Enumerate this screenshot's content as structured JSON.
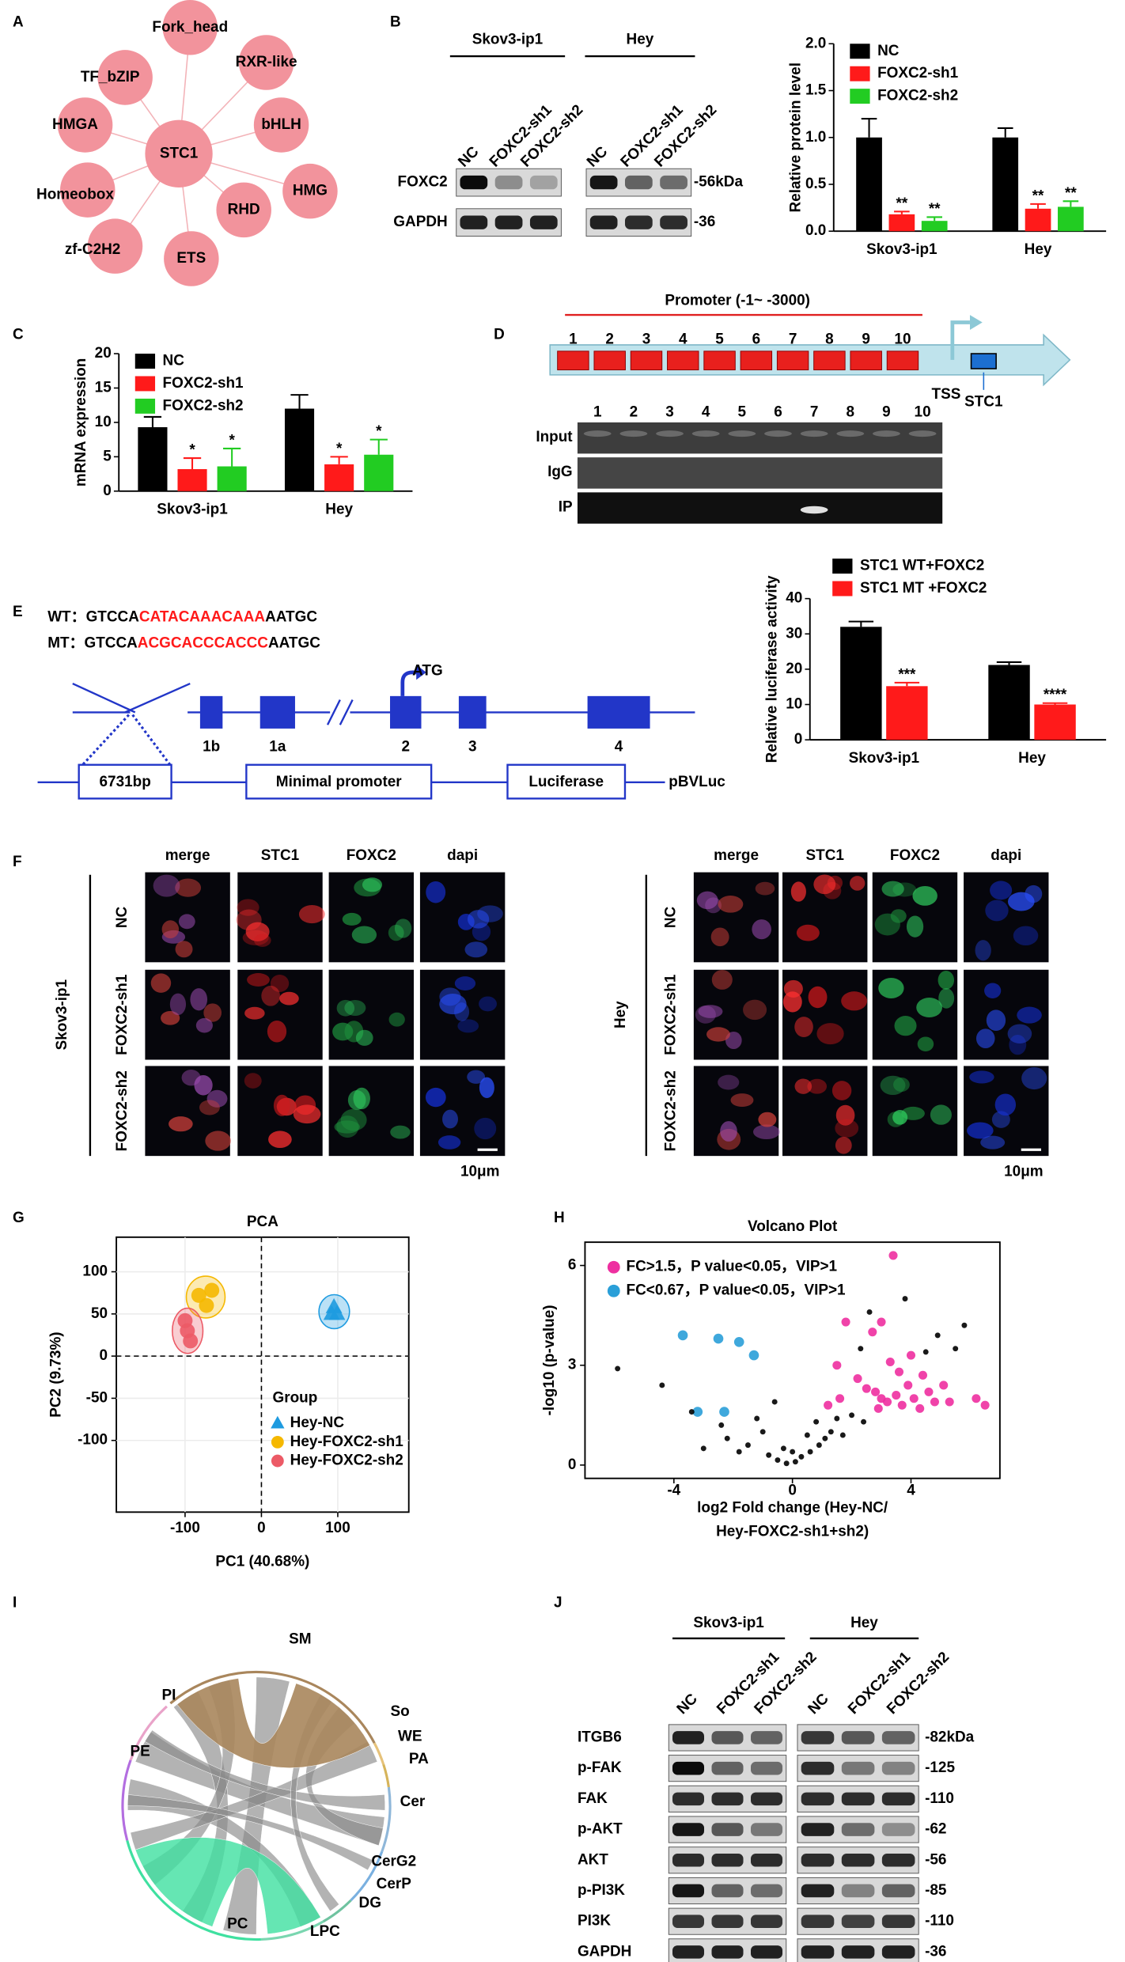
{
  "panel_labels": [
    "A",
    "B",
    "C",
    "D",
    "E",
    "F",
    "G",
    "H",
    "I",
    "J"
  ],
  "panel_a": {
    "center": "STC1",
    "nodes": [
      "Fork_head",
      "RXR-like",
      "bHLH",
      "HMG",
      "RHD",
      "ETS",
      "zf-C2H2",
      "Homeobox",
      "HMGA",
      "TF_bZIP"
    ]
  },
  "panel_b_blot": {
    "groups": [
      "Skov3-ip1",
      "Hey"
    ],
    "lanes": [
      "NC",
      "FOXC2-sh1",
      "FOXC2-sh2"
    ],
    "proteins": [
      "FOXC2",
      "GAPDH"
    ],
    "sizes": [
      "-56kDa",
      "-36"
    ]
  },
  "panel_d": {
    "promoter": "Promoter (-1~ -3000)",
    "sites": [
      "1",
      "2",
      "3",
      "4",
      "5",
      "6",
      "7",
      "8",
      "9",
      "10"
    ],
    "tss": "TSS",
    "gene": "STC1",
    "lanes": [
      "1",
      "2",
      "3",
      "4",
      "5",
      "6",
      "7",
      "8",
      "9",
      "10"
    ],
    "rows": [
      "Input",
      "IgG",
      "IP"
    ]
  },
  "panel_e": {
    "wt": {
      "label": "WT：",
      "seq": [
        "GTCCA",
        "CATACAAACAAA",
        "AATGC"
      ]
    },
    "mt": {
      "label": "MT：",
      "seq": [
        "GTCCA",
        "ACGCACCCACCC",
        "AATGC"
      ]
    },
    "atg": "ATG",
    "exons": [
      "1b",
      "1a",
      "2",
      "3",
      "4"
    ],
    "construct": [
      "6731bp",
      "Minimal promoter",
      "Luciferase"
    ],
    "vector": "pBVLuc"
  },
  "panel_f": {
    "groups": [
      "Skov3-ip1",
      "Hey"
    ],
    "columns": [
      "merge",
      "STC1",
      "FOXC2",
      "dapi"
    ],
    "rows": [
      "NC",
      "FOXC2-sh1",
      "FOXC2-sh2"
    ],
    "scale_bar": "10μm"
  },
  "panel_i": {
    "labels": [
      "SM",
      "PI",
      "PE",
      "So",
      "WE",
      "PA",
      "Cer",
      "CerG2",
      "CerP",
      "DG",
      "LPC",
      "PC"
    ]
  },
  "panel_j": {
    "groups": [
      "Skov3-ip1",
      "Hey"
    ],
    "lanes": [
      "NC",
      "FOXC2-sh1",
      "FOXC2-sh2"
    ],
    "proteins": [
      "ITGB6",
      "p-FAK",
      "FAK",
      "p-AKT",
      "AKT",
      "p-PI3K",
      "PI3K",
      "GAPDH"
    ],
    "sizes": [
      "-82kDa",
      "-125",
      "-110",
      "-62",
      "-56",
      "-85",
      "-110",
      "-36"
    ]
  },
  "chart_data": [
    {
      "type": "bar",
      "ylabel": "Relative protein level",
      "legend": "upper left",
      "categories": [
        "Skov3-ip1",
        "Hey"
      ],
      "series": [
        {
          "name": "NC",
          "color": "#000000",
          "values": [
            1.0,
            1.0
          ],
          "errors": [
            0.2,
            0.1
          ]
        },
        {
          "name": "FOXC2-sh1",
          "color": "#ff1a1a",
          "values": [
            0.18,
            0.24
          ],
          "errors": [
            0.03,
            0.05
          ],
          "significance": [
            "**",
            "**"
          ]
        },
        {
          "name": "FOXC2-sh2",
          "color": "#22cc22",
          "values": [
            0.11,
            0.26
          ],
          "errors": [
            0.04,
            0.06
          ],
          "significance": [
            "**",
            "**"
          ]
        }
      ],
      "ylim": [
        0,
        2
      ],
      "yticks": [
        {
          "value": 0,
          "label": "0.0"
        },
        {
          "value": 0.5,
          "label": "0.5"
        },
        {
          "value": 1,
          "label": "1.0"
        },
        {
          "value": 1.5,
          "label": "1.5"
        },
        {
          "value": 2,
          "label": "2.0"
        }
      ]
    },
    {
      "type": "bar",
      "ylabel": "mRNA expression",
      "legend": "upper left",
      "categories": [
        "Skov3-ip1",
        "Hey"
      ],
      "series": [
        {
          "name": "NC",
          "color": "#000000",
          "values": [
            9.3,
            12.0
          ],
          "errors": [
            1.5,
            2.0
          ]
        },
        {
          "name": "FOXC2-sh1",
          "color": "#ff1a1a",
          "values": [
            3.2,
            3.9
          ],
          "errors": [
            1.6,
            1.1
          ],
          "significance": [
            "*",
            "*"
          ]
        },
        {
          "name": "FOXC2-sh2",
          "color": "#22cc22",
          "values": [
            3.6,
            5.3
          ],
          "errors": [
            2.6,
            2.2
          ],
          "significance": [
            "*",
            "*"
          ]
        }
      ],
      "ylim": [
        0,
        20
      ],
      "yticks": [
        0,
        5,
        10,
        15,
        20
      ]
    },
    {
      "type": "bar",
      "ylabel": "Relative luciferase activity",
      "legend": "top",
      "categories": [
        "Skov3-ip1",
        "Hey"
      ],
      "series": [
        {
          "name": "STC1 WT+FOXC2",
          "color": "#000000",
          "values": [
            32,
            21.2
          ],
          "errors": [
            1.5,
            0.8
          ]
        },
        {
          "name": "STC1 MT +FOXC2",
          "color": "#ff1a1a",
          "values": [
            15.2,
            10
          ],
          "errors": [
            1.0,
            0.4
          ],
          "significance": [
            "***",
            "****"
          ]
        }
      ],
      "ylim": [
        0,
        40
      ],
      "yticks": [
        0,
        10,
        20,
        30,
        40
      ]
    },
    {
      "type": "scatter",
      "title": "PCA",
      "xlabel": "PC1 (40.68%)",
      "ylabel": "PC2 (9.73%)",
      "legend_title": "Group",
      "legend": "lower right",
      "grid": true,
      "ellipses": true,
      "xlim": [
        -190,
        193
      ],
      "ylim": [
        -185,
        141
      ],
      "xticks": [
        -100,
        0,
        100
      ],
      "yticks": [
        -100,
        -50,
        0,
        50,
        100
      ],
      "series": [
        {
          "name": "Hey-NC",
          "color": "#1e9be0",
          "marker": "triangle",
          "x": [
            95,
            92,
            99
          ],
          "values": [
            58,
            50,
            50
          ]
        },
        {
          "name": "Hey-FOXC2-sh1",
          "color": "#f5b800",
          "marker": "circle",
          "x": [
            -65,
            -82,
            -72
          ],
          "values": [
            78,
            72,
            60
          ]
        },
        {
          "name": "Hey-FOXC2-sh2",
          "color": "#ec5a66",
          "marker": "circle",
          "x": [
            -100,
            -97,
            -93
          ],
          "values": [
            42,
            30,
            18
          ]
        }
      ]
    },
    {
      "type": "scatter",
      "title": "Volcano Plot",
      "xlabel": [
        "log2 Fold change (Hey-NC/",
        "Hey-FOXC2-sh1+sh2)"
      ],
      "ylabel": "-log10 (p-value)",
      "legend": "upper left",
      "xlim": [
        -7,
        7
      ],
      "ylim": [
        -0.4,
        6.7
      ],
      "xticks": [
        -4,
        0,
        4
      ],
      "yticks": [
        0,
        3,
        6
      ],
      "series": [
        {
          "name": "FC>1.5，P value<0.05，VIP>1",
          "color": "#ee2fa0",
          "marker": "circle",
          "x": [
            3.4,
            1.8,
            2.7,
            3.0,
            3.3,
            1.5,
            2.2,
            2.5,
            2.8,
            3.0,
            3.2,
            3.5,
            3.7,
            3.9,
            4.1,
            4.3,
            4.6,
            4.8,
            5.1,
            5.3,
            1.2,
            1.6,
            6.2,
            6.5,
            3.6,
            2.9,
            4.0,
            4.4
          ],
          "values": [
            6.3,
            4.3,
            4.0,
            4.3,
            3.1,
            3.0,
            2.6,
            2.3,
            2.2,
            2.0,
            1.9,
            2.1,
            1.8,
            2.4,
            2.0,
            1.7,
            2.2,
            1.9,
            2.4,
            1.9,
            1.8,
            2.0,
            2.0,
            1.8,
            2.8,
            1.7,
            3.3,
            2.7
          ]
        },
        {
          "name": "FC<0.67，P value<0.05，VIP>1",
          "color": "#2a9fd8",
          "marker": "circle",
          "x": [
            -3.7,
            -2.5,
            -1.8,
            -1.3,
            -3.2,
            -2.3
          ],
          "values": [
            3.9,
            3.8,
            3.7,
            3.3,
            1.6,
            1.6
          ]
        },
        {
          "color": "#000000",
          "marker": "circle",
          "x": [
            -5.9,
            -4.4,
            -3.4,
            -1.2,
            -2.2,
            -1.5,
            -0.8,
            -0.5,
            -0.2,
            0.1,
            0.3,
            0.6,
            0.9,
            1.1,
            1.3,
            -0.3,
            -1.0,
            0.8,
            1.5,
            2.0,
            2.4,
            3.8,
            4.5,
            5.8,
            5.5,
            2.3,
            0.0,
            -2.4,
            -1.8,
            0.5,
            -3.0,
            1.7,
            4.9,
            2.6,
            -0.6
          ],
          "values": [
            2.9,
            2.4,
            1.6,
            1.4,
            0.8,
            0.6,
            0.3,
            0.15,
            0.05,
            0.1,
            0.25,
            0.4,
            0.6,
            0.8,
            1.0,
            0.5,
            1.0,
            1.3,
            1.4,
            1.5,
            1.3,
            5.0,
            3.4,
            4.2,
            3.5,
            3.5,
            0.4,
            1.2,
            0.4,
            0.9,
            0.5,
            0.9,
            3.9,
            4.6,
            1.9
          ]
        }
      ]
    }
  ]
}
